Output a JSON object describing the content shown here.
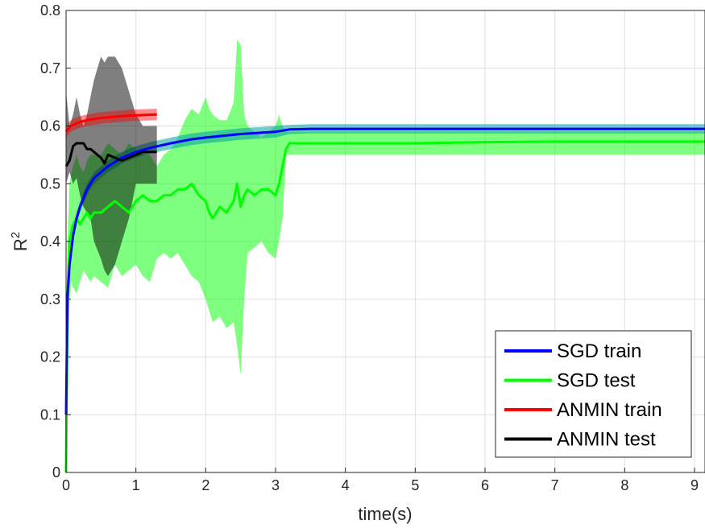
{
  "chart_data": {
    "type": "line",
    "xlabel": "time(s)",
    "ylabel_base": "R",
    "ylabel_sup": "2",
    "xlim": [
      0,
      9.15
    ],
    "ylim": [
      0,
      0.8
    ],
    "x_ticks": [
      0,
      1,
      2,
      3,
      4,
      5,
      6,
      7,
      8,
      9
    ],
    "x_tick_labels": [
      "0",
      "1",
      "2",
      "3",
      "4",
      "5",
      "6",
      "7",
      "8",
      "9"
    ],
    "y_ticks": [
      0,
      0.1,
      0.2,
      0.3,
      0.4,
      0.5,
      0.6,
      0.7,
      0.8
    ],
    "y_tick_labels": [
      "0",
      "0.1",
      "0.2",
      "0.3",
      "0.4",
      "0.5",
      "0.6",
      "0.7",
      "0.8"
    ],
    "grid": true,
    "legend_position": "bottom-right",
    "series": [
      {
        "name": "SGD test",
        "color": "#00ff00",
        "band_color": "#00ff00",
        "band_opacity": 0.5,
        "x": [
          0,
          0.02,
          0.05,
          0.08,
          0.1,
          0.15,
          0.2,
          0.25,
          0.3,
          0.35,
          0.4,
          0.5,
          0.6,
          0.7,
          0.8,
          0.9,
          1.0,
          1.1,
          1.2,
          1.3,
          1.4,
          1.5,
          1.6,
          1.7,
          1.8,
          1.9,
          2.0,
          2.05,
          2.1,
          2.2,
          2.3,
          2.4,
          2.45,
          2.5,
          2.55,
          2.6,
          2.7,
          2.8,
          2.9,
          3.0,
          3.05,
          3.1,
          3.15,
          3.2,
          3.4,
          3.6,
          3.8,
          4,
          5,
          6,
          7,
          8,
          9,
          9.15
        ],
        "y": [
          0,
          0.3,
          0.4,
          0.42,
          0.43,
          0.44,
          0.43,
          0.44,
          0.45,
          0.44,
          0.45,
          0.45,
          0.46,
          0.47,
          0.46,
          0.45,
          0.47,
          0.48,
          0.47,
          0.47,
          0.48,
          0.48,
          0.49,
          0.49,
          0.5,
          0.48,
          0.47,
          0.45,
          0.44,
          0.46,
          0.45,
          0.47,
          0.5,
          0.46,
          0.48,
          0.49,
          0.48,
          0.49,
          0.49,
          0.48,
          0.5,
          0.53,
          0.56,
          0.57,
          0.57,
          0.57,
          0.57,
          0.57,
          0.57,
          0.572,
          0.573,
          0.573,
          0.573,
          0.573
        ],
        "lower": [
          0,
          0.15,
          0.3,
          0.33,
          0.32,
          0.31,
          0.33,
          0.35,
          0.34,
          0.33,
          0.34,
          0.33,
          0.32,
          0.36,
          0.34,
          0.35,
          0.36,
          0.34,
          0.33,
          0.37,
          0.38,
          0.37,
          0.38,
          0.36,
          0.34,
          0.33,
          0.3,
          0.28,
          0.26,
          0.27,
          0.25,
          0.26,
          0.22,
          0.17,
          0.3,
          0.38,
          0.39,
          0.4,
          0.38,
          0.37,
          0.4,
          0.44,
          0.55,
          0.55,
          0.55,
          0.55,
          0.55,
          0.55,
          0.55,
          0.55,
          0.55,
          0.55,
          0.55,
          0.55
        ],
        "upper": [
          0,
          0.4,
          0.5,
          0.52,
          0.53,
          0.55,
          0.53,
          0.52,
          0.54,
          0.55,
          0.55,
          0.55,
          0.57,
          0.56,
          0.55,
          0.57,
          0.56,
          0.55,
          0.55,
          0.53,
          0.55,
          0.56,
          0.58,
          0.61,
          0.63,
          0.62,
          0.65,
          0.63,
          0.62,
          0.61,
          0.61,
          0.64,
          0.75,
          0.74,
          0.62,
          0.6,
          0.59,
          0.58,
          0.59,
          0.6,
          0.62,
          0.6,
          0.59,
          0.59,
          0.59,
          0.59,
          0.59,
          0.59,
          0.59,
          0.59,
          0.59,
          0.59,
          0.59,
          0.59
        ]
      },
      {
        "name": "SGD train",
        "color": "#0000ff",
        "band_color": "#00a0a0",
        "band_opacity": 0.55,
        "x": [
          0,
          0.02,
          0.05,
          0.1,
          0.15,
          0.2,
          0.3,
          0.4,
          0.5,
          0.6,
          0.8,
          1.0,
          1.2,
          1.5,
          1.8,
          2.0,
          2.5,
          3.0,
          3.2,
          3.5,
          4,
          5,
          6,
          7,
          8,
          9,
          9.15
        ],
        "y": [
          0.1,
          0.3,
          0.36,
          0.41,
          0.44,
          0.46,
          0.49,
          0.51,
          0.52,
          0.53,
          0.545,
          0.555,
          0.562,
          0.57,
          0.577,
          0.58,
          0.586,
          0.59,
          0.594,
          0.595,
          0.595,
          0.595,
          0.595,
          0.595,
          0.595,
          0.595,
          0.595
        ],
        "lower": [
          0.09,
          0.29,
          0.35,
          0.4,
          0.43,
          0.45,
          0.48,
          0.5,
          0.51,
          0.52,
          0.535,
          0.545,
          0.552,
          0.56,
          0.567,
          0.57,
          0.576,
          0.58,
          0.586,
          0.587,
          0.587,
          0.587,
          0.587,
          0.587,
          0.587,
          0.587,
          0.587
        ],
        "upper": [
          0.11,
          0.31,
          0.37,
          0.42,
          0.45,
          0.47,
          0.5,
          0.52,
          0.53,
          0.54,
          0.555,
          0.565,
          0.572,
          0.58,
          0.587,
          0.59,
          0.596,
          0.6,
          0.602,
          0.603,
          0.603,
          0.603,
          0.603,
          0.603,
          0.603,
          0.603,
          0.603
        ]
      },
      {
        "name": "ANMIN test",
        "color": "#000000",
        "band_color": "#000000",
        "band_opacity": 0.5,
        "x": [
          0,
          0.05,
          0.1,
          0.15,
          0.2,
          0.25,
          0.3,
          0.35,
          0.4,
          0.5,
          0.55,
          0.6,
          0.7,
          0.8,
          0.9,
          1.0,
          1.1,
          1.2,
          1.3
        ],
        "y": [
          0.53,
          0.54,
          0.565,
          0.57,
          0.57,
          0.57,
          0.56,
          0.56,
          0.555,
          0.545,
          0.535,
          0.55,
          0.545,
          0.54,
          0.545,
          0.55,
          0.555,
          0.555,
          0.555
        ],
        "lower": [
          0.5,
          0.52,
          0.5,
          0.51,
          0.48,
          0.46,
          0.45,
          0.44,
          0.4,
          0.37,
          0.35,
          0.34,
          0.36,
          0.4,
          0.44,
          0.5,
          0.5,
          0.5,
          0.5
        ],
        "upper": [
          0.66,
          0.6,
          0.62,
          0.65,
          0.62,
          0.6,
          0.62,
          0.65,
          0.68,
          0.72,
          0.71,
          0.72,
          0.72,
          0.7,
          0.66,
          0.62,
          0.6,
          0.6,
          0.6
        ]
      },
      {
        "name": "ANMIN train",
        "color": "#ff0000",
        "band_color": "#ff0000",
        "band_opacity": 0.45,
        "x": [
          0,
          0.05,
          0.1,
          0.2,
          0.3,
          0.4,
          0.5,
          0.7,
          0.9,
          1.1,
          1.3
        ],
        "y": [
          0.59,
          0.598,
          0.602,
          0.607,
          0.61,
          0.612,
          0.614,
          0.616,
          0.618,
          0.619,
          0.62
        ],
        "lower": [
          0.58,
          0.588,
          0.592,
          0.597,
          0.6,
          0.602,
          0.604,
          0.606,
          0.608,
          0.609,
          0.61
        ],
        "upper": [
          0.6,
          0.608,
          0.612,
          0.617,
          0.62,
          0.622,
          0.624,
          0.626,
          0.628,
          0.629,
          0.63
        ]
      }
    ],
    "legend": [
      {
        "label": "SGD train",
        "color": "#0000ff"
      },
      {
        "label": "SGD test",
        "color": "#00ff00"
      },
      {
        "label": "ANMIN train",
        "color": "#ff0000"
      },
      {
        "label": "ANMIN test",
        "color": "#000000"
      }
    ]
  }
}
